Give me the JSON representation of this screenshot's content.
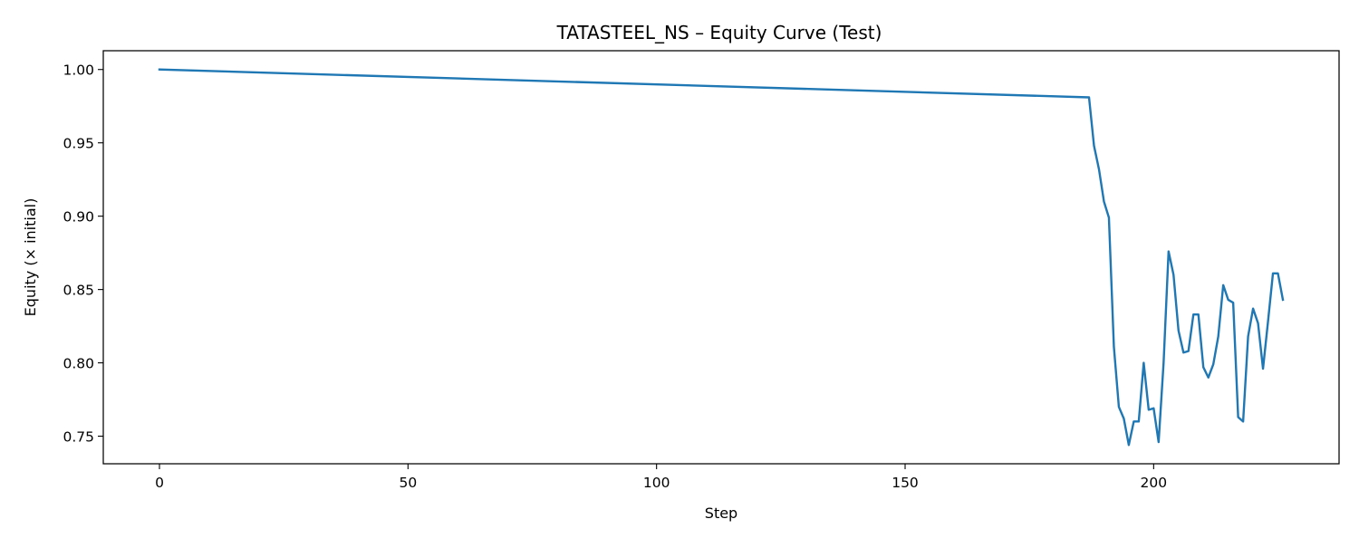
{
  "chart_data": {
    "type": "line",
    "title": "TATASTEEL_NS – Equity Curve (Test)",
    "xlabel": "Step",
    "ylabel": "Equity (× initial)",
    "xlim": [
      -11.3,
      237.3
    ],
    "ylim": [
      0.7312,
      1.0128
    ],
    "xticks": [
      0,
      50,
      100,
      150,
      200
    ],
    "xtick_labels": [
      "0",
      "50",
      "100",
      "150",
      "200"
    ],
    "yticks": [
      0.75,
      0.8,
      0.85,
      0.9,
      0.95,
      1.0
    ],
    "ytick_labels": [
      "0.75",
      "0.80",
      "0.85",
      "0.90",
      "0.95",
      "1.00"
    ],
    "grid": false,
    "series": [
      {
        "color": "#1f77b4",
        "x": [
          0,
          187,
          188,
          189,
          190,
          191,
          192,
          193,
          194,
          195,
          196,
          197,
          198,
          199,
          200,
          201,
          202,
          203,
          204,
          205,
          206,
          207,
          208,
          209,
          210,
          211,
          212,
          213,
          214,
          215,
          216,
          217,
          218,
          219,
          220,
          221,
          222,
          223,
          224,
          225,
          226
        ],
        "y": [
          1.0,
          0.981,
          0.948,
          0.932,
          0.91,
          0.899,
          0.811,
          0.77,
          0.762,
          0.744,
          0.76,
          0.76,
          0.8,
          0.768,
          0.769,
          0.746,
          0.8,
          0.876,
          0.86,
          0.822,
          0.807,
          0.808,
          0.833,
          0.833,
          0.797,
          0.79,
          0.799,
          0.818,
          0.853,
          0.843,
          0.841,
          0.763,
          0.76,
          0.818,
          0.837,
          0.827,
          0.796,
          0.828,
          0.861,
          0.861,
          0.843
        ]
      }
    ]
  }
}
